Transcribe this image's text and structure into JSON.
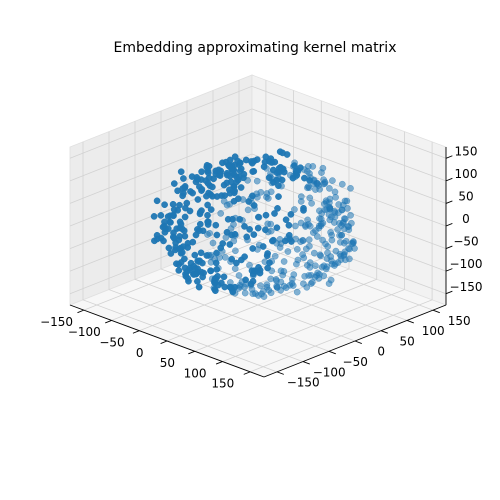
{
  "chart_data": {
    "type": "scatter3d",
    "title": "Embedding approximating kernel matrix",
    "xlabel": "",
    "ylabel": "",
    "zlabel": "",
    "xlim": [
      -175,
      175
    ],
    "ylim": [
      -175,
      175
    ],
    "zlim": [
      -175,
      175
    ],
    "x_ticks": [
      -150,
      -100,
      -50,
      0,
      50,
      100,
      150
    ],
    "y_ticks": [
      -150,
      -100,
      -50,
      0,
      50,
      100,
      150
    ],
    "z_ticks": [
      -150,
      -100,
      -50,
      0,
      50,
      100,
      150
    ],
    "x_tick_labels": [
      "−150",
      "−100",
      "−50",
      "0",
      "50",
      "100",
      "150"
    ],
    "y_tick_labels": [
      "−150",
      "−100",
      "−50",
      "0",
      "50",
      "100",
      "150"
    ],
    "z_tick_labels": [
      "−150",
      "−100",
      "−50",
      "0",
      "50",
      "100",
      "150"
    ],
    "grid": true,
    "view": {
      "elev": 30,
      "azim": -60
    },
    "marker_color": "#1f77b4",
    "pane_color": "#f2f2f2",
    "series": [
      {
        "shape": "sphere",
        "center": [
          0,
          0,
          0
        ],
        "radius": 125,
        "count": 600,
        "jitter": 20
      }
    ]
  }
}
